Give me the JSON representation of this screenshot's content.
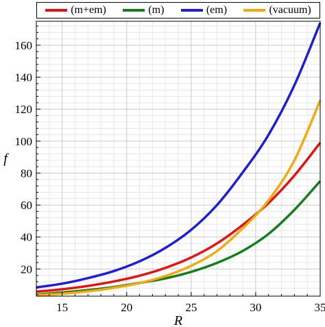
{
  "chart_data": {
    "type": "line",
    "xlabel": "R",
    "ylabel": "f",
    "xlim": [
      13,
      35
    ],
    "ylim": [
      3,
      175
    ],
    "xticks": [
      15,
      20,
      25,
      30,
      35
    ],
    "yticks": [
      20,
      40,
      60,
      80,
      100,
      120,
      140,
      160
    ],
    "x": [
      13,
      15,
      17,
      19,
      21,
      23,
      25,
      27,
      29,
      31,
      33,
      35
    ],
    "grid": true,
    "legend_position": "top",
    "series": [
      {
        "name": "(m+em)",
        "color": "#e81010",
        "values": [
          5.8,
          7.3,
          9.4,
          12.2,
          15.8,
          20.7,
          27.2,
          36.0,
          47.6,
          61.3,
          78.5,
          99.0
        ]
      },
      {
        "name": "(m)",
        "color": "#11801a",
        "values": [
          4.0,
          5.3,
          6.8,
          8.7,
          11.3,
          14.1,
          18.2,
          23.8,
          31.3,
          42.0,
          57.0,
          75.0
        ]
      },
      {
        "name": "(em)",
        "color": "#1c1ce0",
        "values": [
          8.5,
          10.8,
          14.3,
          18.7,
          24.8,
          33.2,
          44.5,
          60.0,
          80.5,
          104.0,
          135.0,
          174.0
        ]
      },
      {
        "name": "(vacuum)",
        "color": "#f5a90f",
        "values": [
          3.7,
          4.5,
          6.0,
          8.2,
          11.2,
          15.6,
          22.0,
          31.2,
          45.5,
          63.0,
          88.0,
          125.5
        ]
      }
    ]
  }
}
